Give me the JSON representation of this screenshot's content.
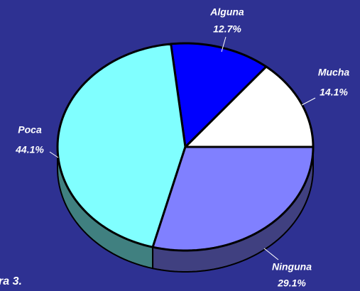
{
  "chart_data": {
    "type": "pie3d",
    "categories": [
      "Mucha",
      "Alguna",
      "Poca",
      "Ninguna"
    ],
    "values": [
      14.1,
      12.7,
      44.1,
      29.1
    ],
    "value_labels": [
      "14.1%",
      "12.7%",
      "44.1%",
      "29.1%"
    ],
    "colors": [
      "#ffffff",
      "#0000ff",
      "#80ffff",
      "#8080ff"
    ],
    "side_colors": [
      "#808080",
      "#000080",
      "#408080",
      "#404080"
    ],
    "annotation": "ra 3."
  }
}
